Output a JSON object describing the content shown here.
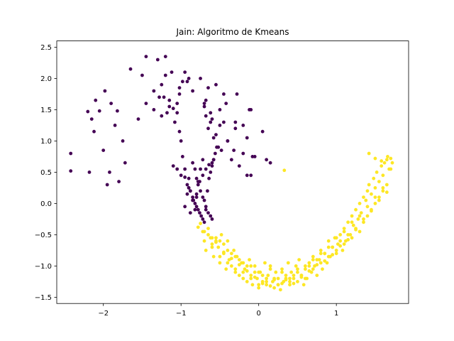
{
  "chart_data": {
    "type": "scatter",
    "title": "Jain: Algoritmo de Kmeans",
    "xlabel": "",
    "ylabel": "",
    "xlim": [
      -2.6,
      1.93
    ],
    "ylim": [
      -1.6,
      2.6
    ],
    "xticks": [
      -2,
      -1,
      0,
      1
    ],
    "yticks": [
      -1.5,
      -1.0,
      -0.5,
      0.0,
      0.5,
      1.0,
      1.5,
      2.0,
      2.5
    ],
    "ytick_labels": [
      "−1.5",
      "−1.0",
      "−0.5",
      "0.0",
      "0.5",
      "1.0",
      "1.5",
      "2.0",
      "2.5"
    ],
    "xtick_labels": [
      "−2",
      "−1",
      "0",
      "1"
    ],
    "grid": false,
    "legend": "none",
    "colors": {
      "cluster_0": "#440154",
      "cluster_1": "#fde725"
    },
    "series": [
      {
        "color": "#440154",
        "x": [
          -2.42,
          -2.42,
          -2.2,
          -2.18,
          -2.15,
          -2.12,
          -2.1,
          -2.05,
          -2.0,
          -1.98,
          -1.95,
          -1.92,
          -1.9,
          -1.85,
          -1.82,
          -1.8,
          -1.75,
          -1.72,
          -1.65,
          -1.55,
          -1.5,
          -1.45,
          -1.35,
          -1.3,
          -1.25,
          -1.22,
          -1.2,
          -1.18,
          -1.15,
          -1.1,
          -1.08,
          -1.05,
          -1.02,
          -1.0,
          -0.98,
          -0.95,
          -0.9,
          -0.88,
          -0.85,
          -0.82,
          -0.8,
          -0.78,
          -0.75,
          -0.72,
          -0.7,
          -0.68,
          -0.65,
          -0.62,
          -0.6,
          -0.58,
          -0.55,
          -0.52,
          -0.5,
          -0.48,
          -0.45,
          -0.42,
          -0.4,
          -0.35,
          -0.32,
          -0.3,
          -0.25,
          -0.2,
          -0.15,
          -0.12,
          -0.1,
          -0.08,
          -0.05,
          0.05,
          0.1,
          0.15,
          -1.1,
          -1.05,
          -1.0,
          -0.95,
          -0.92,
          -0.9,
          -0.88,
          -0.85,
          -0.82,
          -0.8,
          -0.78,
          -0.76,
          -0.74,
          -0.72,
          -0.7,
          -0.68,
          -0.66,
          -0.64,
          -0.62,
          -0.6,
          -0.58,
          -0.56,
          -0.54,
          -0.85,
          -0.82,
          -0.8,
          -0.78,
          -0.75,
          -0.72,
          -0.7,
          -0.68,
          -0.65,
          -0.62,
          -0.6,
          -0.95,
          -0.92,
          -0.9,
          -0.88,
          -0.84,
          -0.8,
          -0.76,
          -0.72,
          -0.68,
          -0.64,
          -0.6,
          -1.25,
          -1.15,
          -1.05,
          -1.02,
          -0.98,
          -0.95,
          -0.9,
          -0.85,
          -0.7,
          -0.65,
          -0.55,
          -0.45,
          -0.3,
          -0.28,
          -0.2,
          -0.15,
          -0.1,
          -1.45,
          -1.35,
          -1.28,
          -1.2,
          -1.12,
          -1.02,
          -0.92,
          -0.75,
          -0.68,
          -0.62,
          -0.58,
          -0.5,
          -0.4
        ],
        "y": [
          0.8,
          0.52,
          1.47,
          0.5,
          1.35,
          1.15,
          1.65,
          1.48,
          0.85,
          1.8,
          0.3,
          0.5,
          1.6,
          1.25,
          1.48,
          0.35,
          1.0,
          0.65,
          2.15,
          1.35,
          2.05,
          2.35,
          1.5,
          2.3,
          1.9,
          1.7,
          2.35,
          1.45,
          1.65,
          1.52,
          1.3,
          1.45,
          1.15,
          1.0,
          0.75,
          0.55,
          0.4,
          0.2,
          0.05,
          -0.1,
          0.1,
          0.35,
          0.55,
          0.7,
          1.55,
          1.4,
          1.2,
          1.45,
          1.35,
          0.7,
          1.1,
          0.9,
          1.5,
          0.85,
          1.3,
          1.6,
          1.0,
          0.7,
          0.85,
          1.3,
          0.6,
          0.8,
          0.45,
          1.5,
          1.5,
          0.75,
          0.75,
          1.15,
          0.7,
          0.65,
          0.6,
          0.55,
          0.45,
          0.42,
          0.3,
          0.25,
          0.2,
          0.1,
          0.0,
          -0.05,
          -0.1,
          -0.15,
          -0.2,
          -0.25,
          -0.3,
          -0.1,
          0.2,
          0.4,
          0.5,
          0.6,
          0.7,
          0.8,
          0.9,
          0.65,
          0.55,
          0.4,
          0.3,
          0.2,
          0.1,
          0.05,
          -0.05,
          -0.15,
          -0.2,
          -0.25,
          -0.05,
          0.15,
          0.25,
          -0.15,
          0.05,
          0.15,
          0.35,
          0.45,
          0.55,
          0.62,
          0.65,
          1.4,
          1.55,
          1.6,
          1.75,
          1.95,
          2.1,
          2.0,
          1.8,
          1.6,
          1.85,
          1.9,
          1.75,
          1.2,
          1.75,
          1.25,
          1.05,
          0.45,
          1.6,
          1.8,
          1.7,
          2.05,
          2.1,
          1.85,
          1.95,
          2.0,
          1.65,
          1.3,
          1.05,
          1.25,
          1.0
        ]
      },
      {
        "color": "#fde725",
        "x": [
          -0.78,
          -0.75,
          -0.72,
          -0.7,
          -0.68,
          -0.65,
          -0.62,
          -0.6,
          -0.58,
          -0.55,
          -0.52,
          -0.5,
          -0.48,
          -0.45,
          -0.42,
          -0.4,
          -0.38,
          -0.35,
          -0.32,
          -0.3,
          -0.28,
          -0.25,
          -0.22,
          -0.2,
          -0.18,
          -0.15,
          -0.12,
          -0.1,
          -0.08,
          -0.05,
          -0.02,
          0.0,
          0.02,
          0.05,
          0.08,
          0.1,
          0.12,
          0.15,
          0.18,
          0.2,
          0.22,
          0.25,
          0.28,
          0.3,
          0.32,
          0.35,
          0.38,
          0.4,
          0.42,
          0.45,
          0.48,
          0.5,
          0.52,
          0.55,
          0.58,
          0.6,
          0.62,
          0.65,
          0.68,
          0.7,
          0.72,
          0.75,
          0.78,
          0.8,
          0.82,
          0.85,
          0.88,
          0.9,
          0.92,
          0.95,
          0.98,
          1.0,
          1.02,
          1.05,
          1.08,
          1.1,
          1.12,
          1.15,
          1.18,
          1.2,
          1.22,
          1.25,
          1.28,
          1.3,
          1.32,
          1.35,
          1.38,
          1.4,
          1.42,
          1.45,
          1.48,
          1.5,
          1.52,
          1.55,
          1.58,
          1.6,
          1.62,
          1.65,
          1.68,
          1.7,
          -0.7,
          -0.65,
          -0.6,
          -0.55,
          -0.5,
          -0.45,
          -0.4,
          -0.35,
          -0.3,
          -0.25,
          -0.2,
          -0.15,
          -0.1,
          -0.05,
          0.0,
          0.05,
          0.1,
          0.15,
          0.2,
          0.25,
          0.3,
          0.35,
          0.4,
          0.45,
          0.5,
          0.55,
          0.6,
          0.65,
          0.7,
          0.75,
          0.8,
          0.85,
          0.9,
          0.95,
          1.0,
          1.05,
          1.1,
          1.15,
          1.2,
          1.25,
          1.3,
          1.35,
          1.4,
          1.45,
          1.5,
          1.55,
          1.6,
          1.65,
          -0.6,
          -0.5,
          -0.4,
          -0.3,
          -0.2,
          -0.1,
          0.0,
          0.1,
          0.2,
          0.3,
          0.4,
          0.5,
          0.6,
          0.7,
          0.8,
          0.9,
          1.0,
          1.1,
          1.2,
          1.3,
          1.4,
          1.5,
          1.6,
          1.7,
          -0.55,
          -0.45,
          -0.35,
          -0.25,
          -0.15,
          -0.05,
          0.05,
          0.15,
          0.25,
          0.35,
          0.45,
          0.55,
          0.65,
          0.75,
          0.85,
          0.95,
          1.05,
          1.15,
          1.25,
          1.35,
          1.45,
          1.55,
          1.65,
          0.33,
          1.42,
          1.5,
          1.58,
          1.66,
          1.72
        ],
        "y": [
          -0.38,
          -0.32,
          -0.45,
          -0.6,
          -0.75,
          -0.4,
          -0.55,
          -0.65,
          -0.85,
          -0.55,
          -0.7,
          -0.95,
          -0.5,
          -0.8,
          -1.05,
          -0.6,
          -0.9,
          -1.0,
          -0.75,
          -1.1,
          -0.85,
          -1.15,
          -0.95,
          -1.2,
          -1.05,
          -1.25,
          -0.9,
          -1.15,
          -1.3,
          -1.0,
          -1.2,
          -1.35,
          -1.1,
          -1.25,
          -0.95,
          -1.3,
          -1.15,
          -1.0,
          -1.25,
          -1.35,
          -1.1,
          -1.2,
          -1.38,
          -1.05,
          -1.25,
          -1.15,
          -0.95,
          -1.3,
          -1.1,
          -1.2,
          -1.0,
          -1.25,
          -0.9,
          -1.15,
          -1.3,
          -1.05,
          -1.2,
          -0.95,
          -1.1,
          -0.85,
          -1.0,
          -1.15,
          -0.9,
          -0.75,
          -1.05,
          -0.8,
          -0.95,
          -0.6,
          -0.85,
          -0.7,
          -0.55,
          -0.8,
          -0.65,
          -0.5,
          -0.75,
          -0.4,
          -0.6,
          -0.3,
          -0.5,
          -0.2,
          -0.35,
          -0.1,
          -0.25,
          0.0,
          -0.15,
          0.1,
          0.05,
          0.2,
          0.3,
          0.15,
          0.4,
          0.25,
          0.5,
          0.35,
          0.6,
          0.45,
          0.65,
          0.7,
          0.55,
          0.72,
          -0.45,
          -0.5,
          -0.7,
          -0.6,
          -0.85,
          -0.65,
          -0.95,
          -0.8,
          -1.05,
          -0.9,
          -1.1,
          -1.0,
          -1.2,
          -1.1,
          -1.3,
          -1.15,
          -1.25,
          -1.05,
          -1.2,
          -1.3,
          -1.1,
          -1.2,
          -1.25,
          -1.15,
          -1.05,
          -1.15,
          -1.2,
          -1.0,
          -1.05,
          -0.9,
          -0.95,
          -0.8,
          -0.85,
          -0.7,
          -0.75,
          -0.6,
          -0.65,
          -0.5,
          -0.55,
          -0.4,
          -0.45,
          -0.3,
          -0.2,
          -0.1,
          0.0,
          0.1,
          0.2,
          0.3,
          -0.55,
          -0.6,
          -0.75,
          -0.85,
          -0.95,
          -1.0,
          -1.1,
          -1.2,
          -1.22,
          -1.28,
          -1.2,
          -1.1,
          -1.0,
          -0.9,
          -0.8,
          -0.7,
          -0.55,
          -0.45,
          -0.3,
          -0.2,
          -0.05,
          0.1,
          0.25,
          0.55,
          -0.62,
          -0.78,
          -0.88,
          -0.98,
          -1.08,
          -1.18,
          -1.28,
          -1.32,
          -1.3,
          -1.22,
          -1.28,
          -1.18,
          -1.08,
          -0.98,
          -0.92,
          -0.82,
          -0.68,
          -0.58,
          -0.42,
          -0.25,
          -0.12,
          0.05,
          0.18,
          0.53,
          0.8,
          0.72,
          0.68,
          0.75,
          0.65
        ]
      }
    ]
  }
}
